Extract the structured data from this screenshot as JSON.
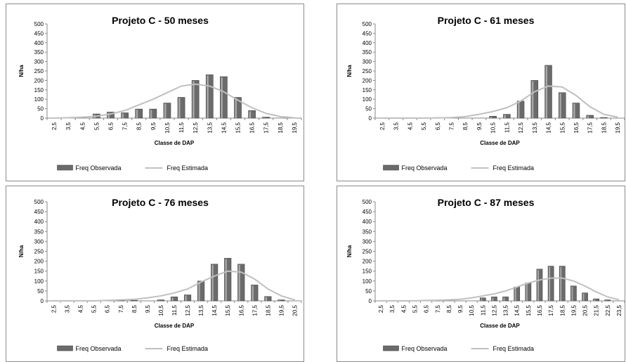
{
  "chart_data": [
    {
      "type": "bar",
      "title": "Projeto C - 50 meses",
      "xlabel": "Classe de DAP",
      "ylabel": "N/ha",
      "ylim": [
        0,
        500
      ],
      "yticks": [
        "0",
        "50",
        "100",
        "150",
        "200",
        "250",
        "300",
        "350",
        "400",
        "450",
        "500"
      ],
      "categories": [
        "2,5",
        "3,5",
        "4,5",
        "5,5",
        "6,5",
        "7,5",
        "8,5",
        "9,5",
        "10,5",
        "11,5",
        "12,5",
        "13,5",
        "14,5",
        "15,5",
        "16,5",
        "17,5",
        "18,5",
        "19,5"
      ],
      "series": [
        {
          "name": "Freq Observada",
          "kind": "bar",
          "values": [
            0,
            0,
            0,
            22,
            32,
            28,
            48,
            48,
            80,
            110,
            200,
            230,
            220,
            110,
            40,
            5,
            0,
            0
          ]
        },
        {
          "name": "Freq Estimada",
          "kind": "line",
          "values": [
            0,
            2,
            5,
            10,
            22,
            40,
            70,
            100,
            135,
            170,
            180,
            170,
            140,
            95,
            55,
            25,
            8,
            2
          ]
        }
      ],
      "legend": "bottom",
      "colors": {
        "bar": "#6b6b6b",
        "line": "#c0c0c0"
      }
    },
    {
      "type": "bar",
      "title": "Projeto C - 61 meses",
      "xlabel": "Classe de DAP",
      "ylabel": "N/ha",
      "ylim": [
        0,
        500
      ],
      "yticks": [
        "0",
        "50",
        "100",
        "150",
        "200",
        "250",
        "300",
        "350",
        "400",
        "450",
        "500"
      ],
      "categories": [
        "2,5",
        "3,5",
        "4,5",
        "5,5",
        "6,5",
        "7,5",
        "8,5",
        "9,5",
        "10,5",
        "11,5",
        "12,5",
        "13,5",
        "14,5",
        "15,5",
        "16,5",
        "17,5",
        "18,5",
        "19,5"
      ],
      "series": [
        {
          "name": "Freq Observada",
          "kind": "bar",
          "values": [
            0,
            0,
            0,
            0,
            3,
            0,
            0,
            0,
            10,
            20,
            90,
            200,
            280,
            135,
            80,
            15,
            3,
            0
          ]
        },
        {
          "name": "Freq Estimada",
          "kind": "line",
          "values": [
            0,
            0,
            0,
            0,
            1,
            3,
            8,
            20,
            35,
            55,
            90,
            140,
            170,
            165,
            120,
            60,
            20,
            5
          ]
        }
      ],
      "legend": "bottom",
      "colors": {
        "bar": "#6b6b6b",
        "line": "#c0c0c0"
      }
    },
    {
      "type": "bar",
      "title": "Projeto C - 76 meses",
      "xlabel": "Classe de DAP",
      "ylabel": "N/ha",
      "ylim": [
        0,
        500
      ],
      "yticks": [
        "0",
        "50",
        "100",
        "150",
        "200",
        "250",
        "300",
        "350",
        "400",
        "450",
        "500"
      ],
      "categories": [
        "2,5",
        "3,5",
        "4,5",
        "5,5",
        "6,5",
        "7,5",
        "8,5",
        "9,5",
        "10,5",
        "11,5",
        "12,5",
        "13,5",
        "14,5",
        "15,5",
        "16,5",
        "17,5",
        "18,5",
        "19,5",
        "20,5"
      ],
      "series": [
        {
          "name": "Freq Observada",
          "kind": "bar",
          "values": [
            0,
            0,
            0,
            0,
            3,
            3,
            3,
            0,
            5,
            20,
            30,
            100,
            185,
            215,
            185,
            80,
            22,
            5,
            0
          ]
        },
        {
          "name": "Freq Estimada",
          "kind": "line",
          "values": [
            0,
            0,
            0,
            0,
            2,
            5,
            8,
            15,
            25,
            40,
            60,
            95,
            125,
            150,
            145,
            110,
            60,
            25,
            5
          ]
        }
      ],
      "legend": "bottom",
      "colors": {
        "bar": "#6b6b6b",
        "line": "#c0c0c0"
      }
    },
    {
      "type": "bar",
      "title": "Projeto C - 87 meses",
      "xlabel": "Classe de DAP",
      "ylabel": "N/ha",
      "ylim": [
        0,
        500
      ],
      "yticks": [
        "0",
        "50",
        "100",
        "150",
        "200",
        "250",
        "300",
        "350",
        "400",
        "450",
        "500"
      ],
      "categories": [
        "2,5",
        "3,5",
        "4,5",
        "5,5",
        "6,5",
        "7,5",
        "8,5",
        "9,5",
        "10,5",
        "11,5",
        "12,5",
        "13,5",
        "14,5",
        "15,5",
        "16,5",
        "17,5",
        "18,5",
        "19,5",
        "20,5",
        "21,5",
        "22,5",
        "23,5"
      ],
      "series": [
        {
          "name": "Freq Observada",
          "kind": "bar",
          "values": [
            0,
            0,
            0,
            0,
            3,
            3,
            0,
            0,
            0,
            15,
            20,
            20,
            70,
            90,
            160,
            175,
            175,
            75,
            40,
            10,
            5,
            0
          ]
        },
        {
          "name": "Freq Estimada",
          "kind": "line",
          "values": [
            0,
            0,
            0,
            0,
            2,
            3,
            5,
            8,
            15,
            25,
            35,
            50,
            70,
            90,
            105,
            115,
            115,
            100,
            75,
            45,
            20,
            5
          ]
        }
      ],
      "legend": "bottom",
      "colors": {
        "bar": "#6b6b6b",
        "line": "#c0c0c0"
      }
    }
  ]
}
